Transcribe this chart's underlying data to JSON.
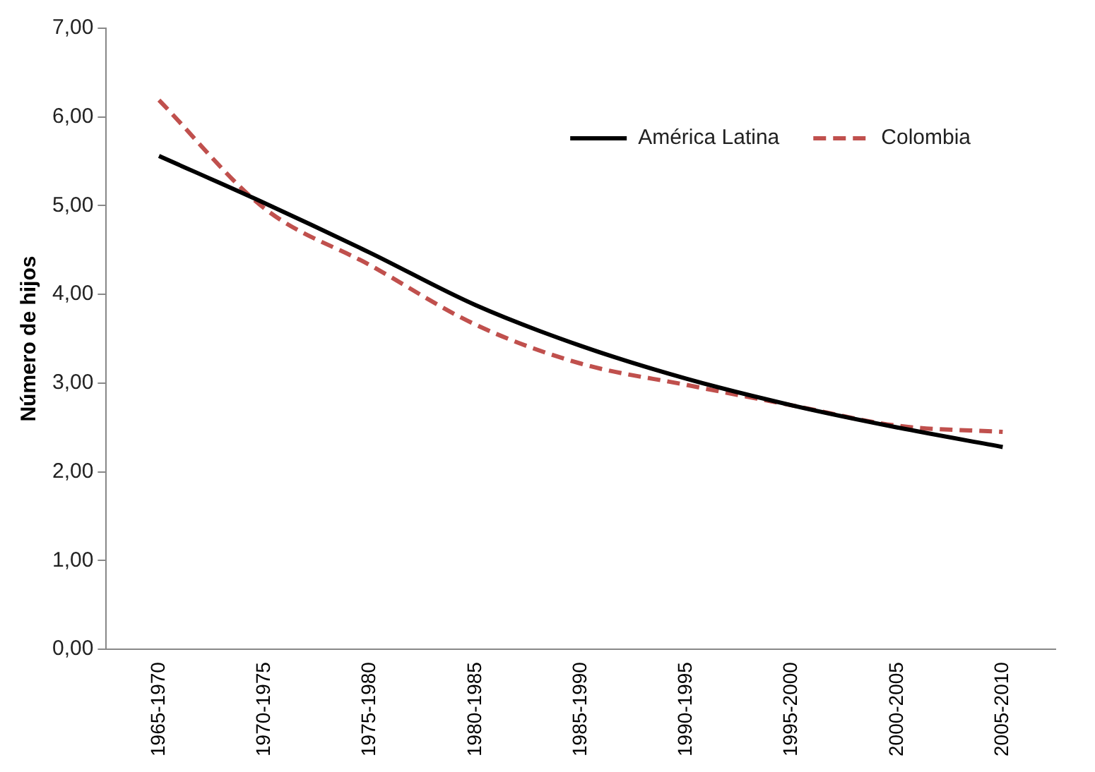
{
  "chart_data": {
    "type": "line",
    "ylabel": "Número de hijos",
    "categories": [
      "1965-1970",
      "1970-1975",
      "1975-1980",
      "1980-1985",
      "1985-1990",
      "1990-1995",
      "1995-2000",
      "2000-2005",
      "2005-2010"
    ],
    "series": [
      {
        "name": "América Latina",
        "color": "#000000",
        "values": [
          5.56,
          5.03,
          4.47,
          3.88,
          3.42,
          3.05,
          2.75,
          2.5,
          2.28
        ],
        "line_style": "solid"
      },
      {
        "name": "Colombia",
        "color": "#c0504d",
        "values": [
          6.19,
          4.97,
          4.33,
          3.66,
          3.22,
          2.98,
          2.75,
          2.52,
          2.45
        ],
        "line_style": "dashed"
      }
    ],
    "ylim": [
      0,
      7
    ],
    "yticks": [
      {
        "value": 0,
        "label": "0,00"
      },
      {
        "value": 1,
        "label": "1,00"
      },
      {
        "value": 2,
        "label": "2,00"
      },
      {
        "value": 3,
        "label": "3,00"
      },
      {
        "value": 4,
        "label": "4,00"
      },
      {
        "value": 5,
        "label": "5,00"
      },
      {
        "value": 6,
        "label": "6,00"
      },
      {
        "value": 7,
        "label": "7,00"
      }
    ],
    "grid": false,
    "legend": "top right",
    "marker": "none"
  }
}
